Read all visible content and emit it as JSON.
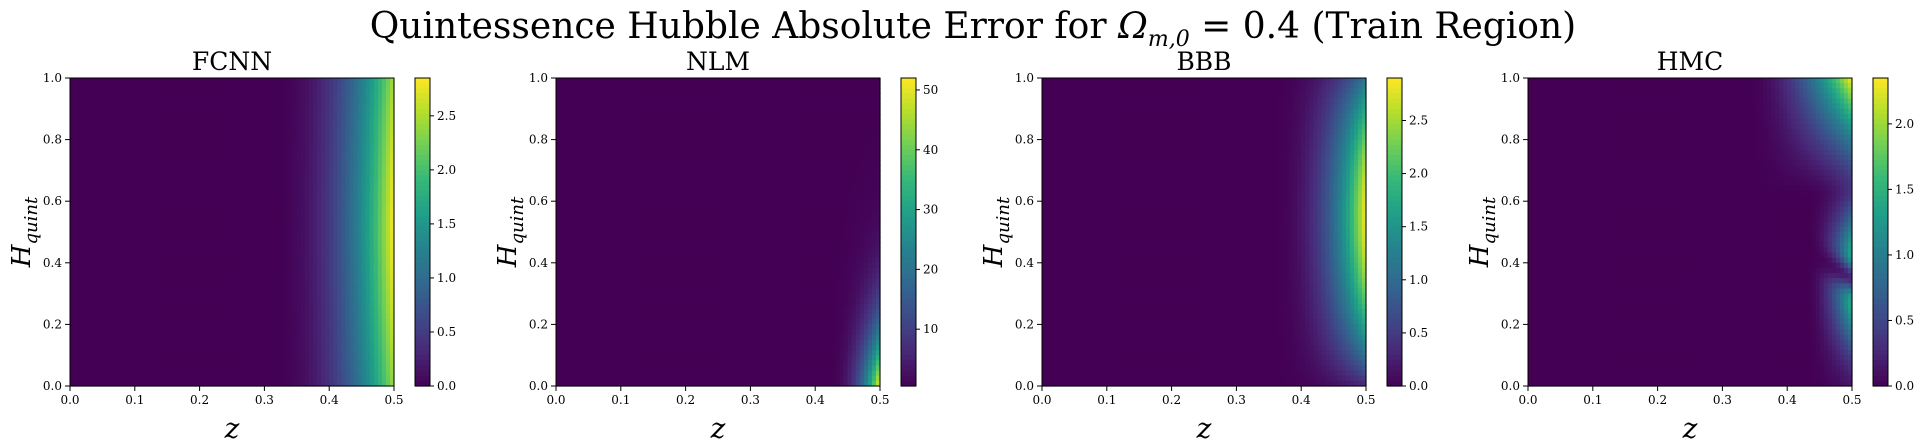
{
  "figure": {
    "title_prefix": "Quintessence Hubble Absolute Error for ",
    "title_math": "Ω",
    "title_sub": "m,0",
    "title_suffix": " = 0.4 (Train Region)"
  },
  "colormap": "viridis",
  "chart_data": [
    {
      "type": "heatmap",
      "title": "FCNN",
      "xlabel": "z",
      "ylabel": "H",
      "ylabel_sub": "quint",
      "xlim": [
        0.0,
        0.5
      ],
      "ylim": [
        0.0,
        1.0
      ],
      "x_ticks": [
        "0.0",
        "0.1",
        "0.2",
        "0.3",
        "0.4",
        "0.5"
      ],
      "y_ticks": [
        "0.0",
        "0.2",
        "0.4",
        "0.6",
        "0.8",
        "1.0"
      ],
      "colorbar_range": [
        0.0,
        2.85
      ],
      "colorbar_ticks": [
        "0.0",
        "0.5",
        "1.0",
        "1.5",
        "2.0",
        "2.5"
      ],
      "colorbar_values": [
        0.0,
        0.5,
        1.0,
        1.5,
        2.0,
        2.5
      ],
      "pattern": "fcnn"
    },
    {
      "type": "heatmap",
      "title": "NLM",
      "xlabel": "z",
      "ylabel": "H",
      "ylabel_sub": "quint",
      "xlim": [
        0.0,
        0.5
      ],
      "ylim": [
        0.0,
        1.0
      ],
      "x_ticks": [
        "0.0",
        "0.1",
        "0.2",
        "0.3",
        "0.4",
        "0.5"
      ],
      "y_ticks": [
        "0.0",
        "0.2",
        "0.4",
        "0.6",
        "0.8",
        "1.0"
      ],
      "colorbar_range": [
        0.5,
        52
      ],
      "colorbar_ticks": [
        "10",
        "20",
        "30",
        "40",
        "50"
      ],
      "colorbar_values": [
        10,
        20,
        30,
        40,
        50
      ],
      "pattern": "nlm"
    },
    {
      "type": "heatmap",
      "title": "BBB",
      "xlabel": "z",
      "ylabel": "H",
      "ylabel_sub": "quint",
      "xlim": [
        0.0,
        0.5
      ],
      "ylim": [
        0.0,
        1.0
      ],
      "x_ticks": [
        "0.0",
        "0.1",
        "0.2",
        "0.3",
        "0.4",
        "0.5"
      ],
      "y_ticks": [
        "0.0",
        "0.2",
        "0.4",
        "0.6",
        "0.8",
        "1.0"
      ],
      "colorbar_range": [
        0.0,
        2.9
      ],
      "colorbar_ticks": [
        "0.0",
        "0.5",
        "1.0",
        "1.5",
        "2.0",
        "2.5"
      ],
      "colorbar_values": [
        0.0,
        0.5,
        1.0,
        1.5,
        2.0,
        2.5
      ],
      "pattern": "bbb"
    },
    {
      "type": "heatmap",
      "title": "HMC",
      "xlabel": "z",
      "ylabel": "H",
      "ylabel_sub": "quint",
      "xlim": [
        0.0,
        0.5
      ],
      "ylim": [
        0.0,
        1.0
      ],
      "x_ticks": [
        "0.0",
        "0.1",
        "0.2",
        "0.3",
        "0.4",
        "0.5"
      ],
      "y_ticks": [
        "0.0",
        "0.2",
        "0.4",
        "0.6",
        "0.8",
        "1.0"
      ],
      "colorbar_range": [
        0.0,
        2.35
      ],
      "colorbar_ticks": [
        "0.0",
        "0.5",
        "1.0",
        "1.5",
        "2.0"
      ],
      "colorbar_values": [
        0.0,
        0.5,
        1.0,
        1.5,
        2.0
      ],
      "pattern": "hmc"
    }
  ]
}
